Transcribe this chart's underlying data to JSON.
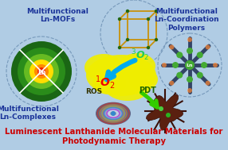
{
  "background_color": "#b0cce4",
  "title_line1": "Luminescent Lanthanide Molecular Materials for",
  "title_line2": "Photodynamic Therapy",
  "title_color": "#cc0000",
  "title_fontsize": 7.2,
  "title_fontweight": "bold",
  "label_topleft": "Multifunctional\nLn-MOFs",
  "label_topright": "Multifunctional\nLn-Coordination\nPolymers",
  "label_bottomleft": "Multifunctional\nLn-Complexes",
  "label_color": "#1a3399",
  "label_fontsize": 6.5,
  "label_fontweight": "bold",
  "cloud_color": "#f0ee00",
  "arrow_cyan_color": "#00aaee",
  "arrow_green_color": "#33cc00",
  "circ_edge": "#7799bb"
}
